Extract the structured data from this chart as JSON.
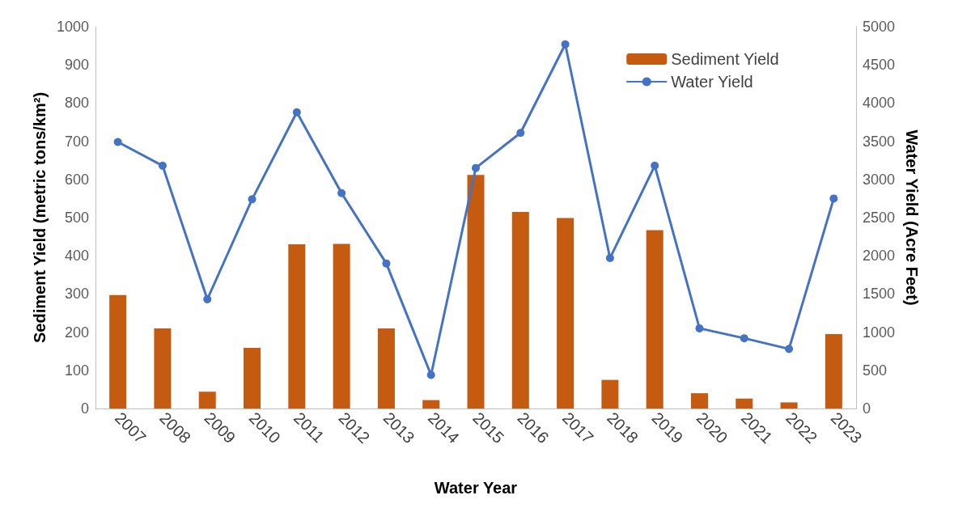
{
  "chart_data": {
    "type": "bar",
    "xlabel": "Water Year",
    "ylabel": "Sediment Yield (metric tons/km²)",
    "y2label": "Water Yield (Acre Feet)",
    "categories": [
      "2007",
      "2008",
      "2009",
      "2010",
      "2011",
      "2012",
      "2013",
      "2014",
      "2015",
      "2016",
      "2017",
      "2018",
      "2019",
      "2020",
      "2021",
      "2022",
      "2023"
    ],
    "series": [
      {
        "name": "Sediment Yield",
        "color": "#c55a11",
        "values": [
          297,
          210,
          44,
          159,
          430,
          431,
          210,
          22,
          612,
          515,
          499,
          75,
          467,
          40,
          26,
          16,
          195
        ]
      },
      {
        "name": "Water Yield",
        "type": "line",
        "axis": "y2",
        "color": "#4472c4",
        "marker": "circle",
        "values": [
          3490,
          3180,
          1430,
          2740,
          3880,
          2820,
          1900,
          440,
          3150,
          3610,
          4770,
          1970,
          3180,
          1050,
          920,
          780,
          2750
        ]
      }
    ],
    "ylim": [
      0,
      1000
    ],
    "yticks": [
      0,
      100,
      200,
      300,
      400,
      500,
      600,
      700,
      800,
      900,
      1000
    ],
    "y2lim": [
      0,
      5000
    ],
    "y2ticks": [
      0,
      500,
      1000,
      1500,
      2000,
      2500,
      3000,
      3500,
      4000,
      4500,
      5000
    ],
    "grid": false,
    "legend": "top right"
  }
}
